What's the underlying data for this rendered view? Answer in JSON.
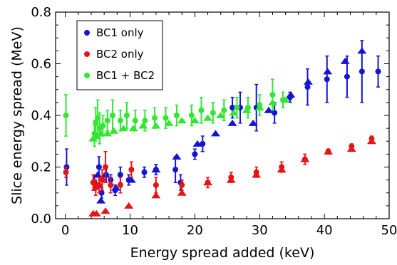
{
  "chart_data": {
    "type": "scatter",
    "title": "",
    "xlabel": "Energy spread added (keV)",
    "ylabel": "Slice energy spread (MeV)",
    "xlim": [
      -1.5,
      50
    ],
    "ylim": [
      0,
      0.8
    ],
    "xticks": [
      "0",
      "10",
      "20",
      "30",
      "40",
      "50"
    ],
    "yticks": [
      "0.0",
      "0.2",
      "0.4",
      "0.6",
      "0.8"
    ],
    "grid": false,
    "legend_position": "top-left",
    "legend_marker": "circle",
    "series": [
      {
        "name": "BC1 only",
        "color": "#1414d2",
        "circles": [
          {
            "x": 0.2,
            "y": 0.2,
            "err": 0.07
          },
          {
            "x": 4.5,
            "y": 0.14,
            "err": 0.03
          },
          {
            "x": 5.2,
            "y": 0.2,
            "err": 0.04
          },
          {
            "x": 5.6,
            "y": 0.1,
            "err": 0.02
          },
          {
            "x": 6.3,
            "y": 0.17,
            "err": 0.03
          },
          {
            "x": 7.0,
            "y": 0.15,
            "err": 0.02
          },
          {
            "x": 7.7,
            "y": 0.11,
            "err": 0.02
          },
          {
            "x": 8.5,
            "y": 0.17,
            "err": 0.03
          },
          {
            "x": 9.8,
            "y": 0.15,
            "err": 0.02
          },
          {
            "x": 12.2,
            "y": 0.18,
            "err": 0.02
          },
          {
            "x": 14.0,
            "y": 0.19,
            "err": 0.02
          },
          {
            "x": 17.0,
            "y": 0.19,
            "err": 0.05
          },
          {
            "x": 17.8,
            "y": 0.14,
            "err": 0.03
          },
          {
            "x": 20.0,
            "y": 0.25,
            "err": 0.02
          },
          {
            "x": 21.2,
            "y": 0.29,
            "err": 0.03
          },
          {
            "x": 25.8,
            "y": 0.43,
            "err": 0.04
          },
          {
            "x": 27.0,
            "y": 0.43,
            "err": 0.06
          },
          {
            "x": 29.5,
            "y": 0.43,
            "err": 0.09
          },
          {
            "x": 32.3,
            "y": 0.41,
            "err": 0.04
          },
          {
            "x": 34.7,
            "y": 0.47,
            "err": 0.02
          },
          {
            "x": 37.4,
            "y": 0.51,
            "err": 0.07
          },
          {
            "x": 40.4,
            "y": 0.54,
            "err": 0.09
          },
          {
            "x": 43.5,
            "y": 0.55,
            "err": 0.08
          },
          {
            "x": 45.8,
            "y": 0.57,
            "err": 0.12
          },
          {
            "x": 48.3,
            "y": 0.57,
            "err": 0.06
          }
        ],
        "triangles": [
          {
            "x": 5.0,
            "y": 0.17
          },
          {
            "x": 5.5,
            "y": 0.07
          },
          {
            "x": 6.2,
            "y": 0.17
          },
          {
            "x": 7.8,
            "y": 0.12
          },
          {
            "x": 10.2,
            "y": 0.15
          },
          {
            "x": 14.0,
            "y": 0.19
          },
          {
            "x": 17.2,
            "y": 0.24
          },
          {
            "x": 20.4,
            "y": 0.29
          },
          {
            "x": 23.2,
            "y": 0.33
          },
          {
            "x": 25.8,
            "y": 0.37
          },
          {
            "x": 29.0,
            "y": 0.37
          },
          {
            "x": 31.4,
            "y": 0.42
          },
          {
            "x": 34.8,
            "y": 0.48
          },
          {
            "x": 37.5,
            "y": 0.53
          },
          {
            "x": 40.5,
            "y": 0.57
          },
          {
            "x": 43.2,
            "y": 0.61
          },
          {
            "x": 45.8,
            "y": 0.65
          }
        ]
      },
      {
        "name": "BC2 only",
        "color": "#e61414",
        "circles": [
          {
            "x": 0.1,
            "y": 0.18,
            "err": 0.02
          },
          {
            "x": 4.3,
            "y": 0.14,
            "err": 0.03
          },
          {
            "x": 4.7,
            "y": 0.12,
            "err": 0.03
          },
          {
            "x": 5.2,
            "y": 0.13,
            "err": 0.03
          },
          {
            "x": 5.7,
            "y": 0.15,
            "err": 0.04
          },
          {
            "x": 6.2,
            "y": 0.2,
            "err": 0.06
          },
          {
            "x": 7.0,
            "y": 0.13,
            "err": 0.03
          },
          {
            "x": 8.5,
            "y": 0.13,
            "err": 0.03
          },
          {
            "x": 10.2,
            "y": 0.19,
            "err": 0.03
          },
          {
            "x": 14.0,
            "y": 0.13,
            "err": 0.03
          },
          {
            "x": 18.0,
            "y": 0.13,
            "err": 0.02
          },
          {
            "x": 22.0,
            "y": 0.14,
            "err": 0.02
          },
          {
            "x": 25.6,
            "y": 0.16,
            "err": 0.02
          },
          {
            "x": 29.5,
            "y": 0.18,
            "err": 0.02
          },
          {
            "x": 33.4,
            "y": 0.2,
            "err": 0.02
          },
          {
            "x": 37.0,
            "y": 0.23,
            "err": 0.02
          },
          {
            "x": 40.6,
            "y": 0.26,
            "err": 0.01
          },
          {
            "x": 44.2,
            "y": 0.28,
            "err": 0.01
          },
          {
            "x": 47.3,
            "y": 0.31,
            "err": 0.01
          }
        ],
        "triangles": [
          {
            "x": 4.3,
            "y": 0.02
          },
          {
            "x": 4.8,
            "y": 0.02
          },
          {
            "x": 6.2,
            "y": 0.03
          },
          {
            "x": 9.8,
            "y": 0.05
          },
          {
            "x": 14.0,
            "y": 0.09
          },
          {
            "x": 18.0,
            "y": 0.1
          },
          {
            "x": 22.0,
            "y": 0.14
          },
          {
            "x": 25.6,
            "y": 0.15
          },
          {
            "x": 29.5,
            "y": 0.17
          },
          {
            "x": 33.4,
            "y": 0.19
          },
          {
            "x": 37.0,
            "y": 0.23
          },
          {
            "x": 40.6,
            "y": 0.26
          },
          {
            "x": 44.2,
            "y": 0.27
          },
          {
            "x": 47.3,
            "y": 0.3
          }
        ]
      },
      {
        "name": "BC1 + BC2",
        "color": "#33e633",
        "circles": [
          {
            "x": 0.1,
            "y": 0.4,
            "err": 0.08
          },
          {
            "x": 4.5,
            "y": 0.33,
            "err": 0.05
          },
          {
            "x": 4.7,
            "y": 0.37,
            "err": 0.06
          },
          {
            "x": 5.0,
            "y": 0.39,
            "err": 0.07
          },
          {
            "x": 5.3,
            "y": 0.35,
            "err": 0.06
          },
          {
            "x": 5.8,
            "y": 0.36,
            "err": 0.04
          },
          {
            "x": 6.5,
            "y": 0.38,
            "err": 0.04
          },
          {
            "x": 7.3,
            "y": 0.4,
            "err": 0.06
          },
          {
            "x": 8.5,
            "y": 0.38,
            "err": 0.04
          },
          {
            "x": 9.5,
            "y": 0.4,
            "err": 0.05
          },
          {
            "x": 10.8,
            "y": 0.38,
            "err": 0.04
          },
          {
            "x": 12.3,
            "y": 0.38,
            "err": 0.04
          },
          {
            "x": 13.8,
            "y": 0.39,
            "err": 0.04
          },
          {
            "x": 15.5,
            "y": 0.39,
            "err": 0.04
          },
          {
            "x": 17.2,
            "y": 0.4,
            "err": 0.04
          },
          {
            "x": 19.5,
            "y": 0.4,
            "err": 0.04
          },
          {
            "x": 21.0,
            "y": 0.42,
            "err": 0.05
          },
          {
            "x": 22.8,
            "y": 0.41,
            "err": 0.04
          },
          {
            "x": 24.5,
            "y": 0.42,
            "err": 0.04
          },
          {
            "x": 26.5,
            "y": 0.43,
            "err": 0.04
          },
          {
            "x": 28.2,
            "y": 0.43,
            "err": 0.04
          },
          {
            "x": 30.0,
            "y": 0.44,
            "err": 0.04
          },
          {
            "x": 32.0,
            "y": 0.48,
            "err": 0.06
          },
          {
            "x": 33.6,
            "y": 0.46,
            "err": 0.03
          }
        ],
        "triangles": [
          {
            "x": 4.3,
            "y": 0.31
          },
          {
            "x": 4.8,
            "y": 0.32
          },
          {
            "x": 5.5,
            "y": 0.33
          },
          {
            "x": 6.5,
            "y": 0.33
          },
          {
            "x": 7.5,
            "y": 0.34
          },
          {
            "x": 9.0,
            "y": 0.35
          },
          {
            "x": 10.5,
            "y": 0.35
          },
          {
            "x": 12.0,
            "y": 0.36
          },
          {
            "x": 14.0,
            "y": 0.36
          },
          {
            "x": 16.0,
            "y": 0.37
          },
          {
            "x": 18.0,
            "y": 0.38
          },
          {
            "x": 20.0,
            "y": 0.38
          },
          {
            "x": 22.0,
            "y": 0.39
          },
          {
            "x": 24.0,
            "y": 0.4
          },
          {
            "x": 26.0,
            "y": 0.41
          },
          {
            "x": 28.0,
            "y": 0.42
          },
          {
            "x": 30.0,
            "y": 0.43
          },
          {
            "x": 32.0,
            "y": 0.45
          },
          {
            "x": 34.0,
            "y": 0.46
          }
        ]
      }
    ]
  }
}
